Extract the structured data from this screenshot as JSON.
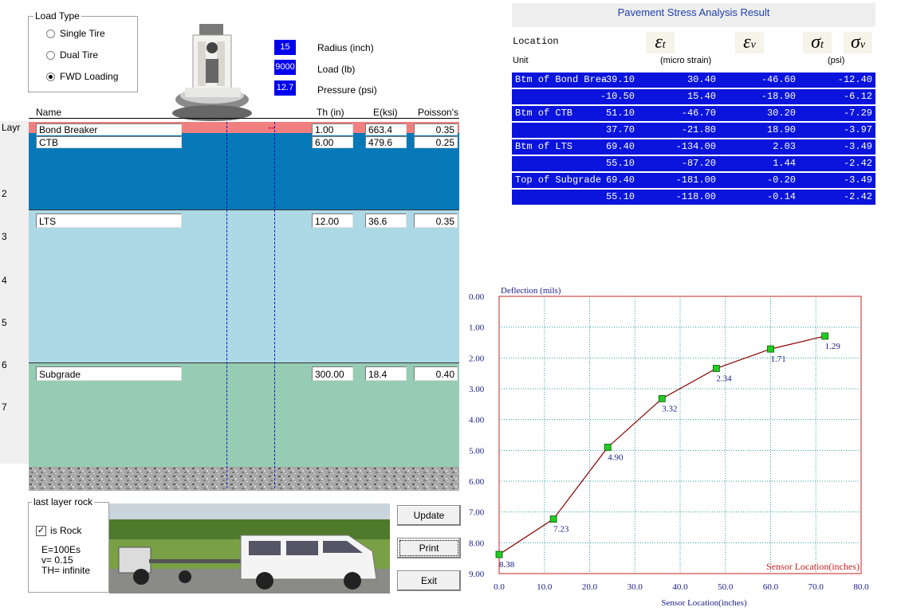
{
  "load_type": {
    "title": "Load Type",
    "options": [
      "Single Tire",
      "Dual Tire",
      "FWD Loading"
    ],
    "selected": 2
  },
  "load_params": [
    {
      "value": "15",
      "label": "Radius (inch)"
    },
    {
      "value": "9000",
      "label": "Load (lb)"
    },
    {
      "value": "12.7",
      "label": "Pressure (psi)"
    }
  ],
  "layer_headers": {
    "name": "Name",
    "th": "Th (in)",
    "e": "E(ksi)",
    "poisson": "Poisson's",
    "layr": "Layr"
  },
  "layers": [
    {
      "name": "Bond Breaker",
      "th": "1.00",
      "e": "663.4",
      "poisson": "0.35"
    },
    {
      "name": "CTB",
      "th": "6.00",
      "e": "479.6",
      "poisson": "0.25"
    },
    {
      "name": "LTS",
      "th": "12.00",
      "e": "36.6",
      "poisson": "0.35"
    },
    {
      "name": "Subgrade",
      "th": "300.00",
      "e": "18.4",
      "poisson": "0.40"
    }
  ],
  "ruler_ticks": [
    "2",
    "3",
    "4",
    "5",
    "6",
    "7"
  ],
  "last_layer": {
    "title": "last layer rock",
    "checkbox_label": "is Rock",
    "checked": true,
    "e_text": "E=100Es",
    "v_text": "v=  0.15",
    "th_text": "TH= infinite"
  },
  "buttons": {
    "update": "Update",
    "print": "Print",
    "exit": "Exit"
  },
  "results": {
    "title": "Pavement Stress Analysis Result",
    "col_location": "Location",
    "col_unit": "Unit",
    "unit_micro": "(micro strain)",
    "unit_psi": "(psi)",
    "symbols": [
      "εt",
      "εv",
      "σt",
      "σv"
    ],
    "rows": [
      {
        "loc": "Btm of Bond Brea",
        "et": "-39.10",
        "ev": "30.40",
        "st": "-46.60",
        "sv": "-12.40"
      },
      {
        "loc": "",
        "et": "-10.50",
        "ev": "15.40",
        "st": "-18.90",
        "sv": "-6.12"
      },
      {
        "loc": "Btm of CTB",
        "et": "51.10",
        "ev": "-46.70",
        "st": "30.20",
        "sv": "-7.29"
      },
      {
        "loc": "",
        "et": "37.70",
        "ev": "-21.80",
        "st": "18.90",
        "sv": "-3.97"
      },
      {
        "loc": "Btm of LTS",
        "et": "69.40",
        "ev": "-134.00",
        "st": "2.03",
        "sv": "-3.49"
      },
      {
        "loc": "",
        "et": "55.10",
        "ev": "-87.20",
        "st": "1.44",
        "sv": "-2.42"
      },
      {
        "loc": "Top of Subgrade",
        "et": "69.40",
        "ev": "-181.00",
        "st": "-0.20",
        "sv": "-3.49"
      },
      {
        "loc": "",
        "et": "55.10",
        "ev": "-118.00",
        "st": "-0.14",
        "sv": "-2.42"
      }
    ]
  },
  "colors": {
    "bond_breaker": "#f08080",
    "ctb": "#0778b8",
    "lts": "#add8e6",
    "subgrade": "#96ccb4",
    "result_row": "#0a14dc",
    "param_box": "#0000ee",
    "curve": "#8b0000",
    "marker": "#22cc22"
  },
  "chart_data": {
    "type": "line",
    "ylabel": "Deflection (mils)",
    "xlabel": "Sensor Location(inches)",
    "x": [
      0,
      12,
      24,
      36,
      48,
      60,
      72
    ],
    "y": [
      8.38,
      7.23,
      4.9,
      3.32,
      2.34,
      1.71,
      1.29
    ],
    "labels": [
      "8.38",
      "7.23",
      "4.90",
      "3.32",
      "2.34",
      "1.71",
      "1.29"
    ],
    "xlim": [
      0,
      80
    ],
    "ylim": [
      0,
      9
    ],
    "y_inverted": true,
    "x_ticks": [
      "0.0",
      "10.0",
      "20.0",
      "30.0",
      "40.0",
      "50.0",
      "60.0",
      "70.0",
      "80.0"
    ],
    "y_ticks": [
      "0.00",
      "1.00",
      "2.00",
      "3.00",
      "4.00",
      "5.00",
      "6.00",
      "7.00",
      "8.00",
      "9.00"
    ],
    "grid": true
  }
}
